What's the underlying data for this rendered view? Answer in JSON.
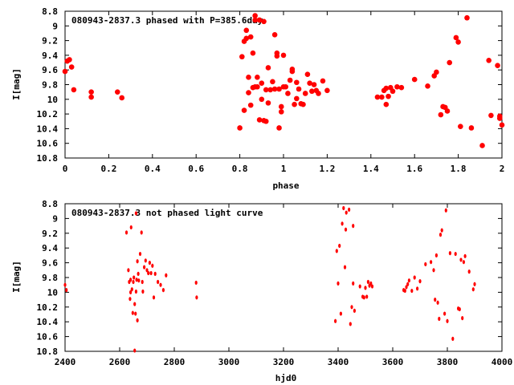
{
  "chart_data": [
    {
      "type": "scatter",
      "title": "080943-2837.3 phased with P=385.6day",
      "xlabel": "phase",
      "ylabel": "I[mag]",
      "xlim": [
        0,
        2
      ],
      "ylim": [
        10.8,
        8.8
      ],
      "y_inverted": true,
      "grid": false,
      "x_ticks": [
        "0",
        "0.2",
        "0.4",
        "0.6",
        "0.8",
        "1",
        "1.2",
        "1.4",
        "1.6",
        "1.8",
        "2"
      ],
      "y_ticks": [
        "8.8",
        "9",
        "9.2",
        "9.4",
        "9.6",
        "9.8",
        "10",
        "10.2",
        "10.4",
        "10.6",
        "10.8"
      ],
      "marker_color": "#ff0000",
      "series": [
        {
          "x": [
            0.0,
            0.01,
            0.02,
            0.03,
            0.04,
            0.12,
            0.12,
            0.24,
            0.26,
            0.8,
            0.81,
            0.82,
            0.83,
            0.84,
            0.84,
            0.85,
            0.86,
            0.86,
            0.87,
            0.87,
            0.88,
            0.88,
            0.89,
            0.89,
            0.9,
            0.9,
            0.91,
            0.91,
            0.92,
            0.92,
            0.93,
            0.93,
            0.94,
            0.95,
            0.96,
            0.97,
            0.98,
            0.99,
            1.0,
            1.0,
            1.01,
            1.02,
            1.03,
            1.04,
            1.05,
            1.06,
            1.07,
            1.08,
            1.09,
            1.1,
            1.11,
            1.12,
            1.13,
            1.14,
            1.15,
            1.16,
            1.18,
            1.2,
            0.83,
            0.82,
            0.85,
            0.87,
            0.96,
            0.97,
            0.98,
            0.99,
            1.04,
            1.06,
            1.43,
            1.45,
            1.46,
            1.47,
            1.48,
            1.49,
            1.5,
            1.52,
            1.54,
            1.6,
            1.66,
            1.69,
            1.7,
            1.72,
            1.73,
            1.74,
            1.75,
            1.76,
            1.79,
            1.8,
            1.81,
            1.84,
            1.86,
            1.91,
            1.94,
            1.95,
            1.98,
            1.99,
            1.99,
            2.0,
            1.47
          ],
          "y": [
            9.62,
            9.48,
            9.46,
            9.56,
            9.87,
            9.97,
            9.9,
            9.9,
            9.98,
            10.39,
            9.42,
            9.21,
            9.17,
            9.7,
            9.91,
            10.08,
            9.84,
            9.37,
            9.83,
            8.86,
            9.83,
            9.7,
            10.28,
            8.92,
            10.0,
            9.78,
            10.29,
            8.94,
            9.87,
            10.3,
            10.05,
            9.57,
            9.87,
            9.76,
            9.86,
            9.41,
            9.86,
            10.17,
            9.4,
            9.83,
            9.83,
            9.92,
            9.74,
            9.62,
            10.07,
            9.77,
            9.86,
            10.06,
            10.07,
            9.92,
            9.66,
            9.78,
            9.89,
            9.8,
            9.88,
            9.92,
            9.75,
            9.88,
            9.06,
            10.15,
            9.15,
            8.92,
            9.12,
            9.37,
            10.39,
            10.1,
            9.59,
            9.99,
            9.97,
            9.97,
            9.88,
            9.85,
            9.96,
            9.84,
            9.89,
            9.83,
            9.84,
            9.73,
            9.82,
            9.68,
            9.63,
            10.21,
            10.1,
            10.11,
            10.16,
            9.5,
            9.16,
            9.22,
            10.37,
            8.89,
            10.39,
            10.63,
            9.47,
            10.22,
            9.54,
            10.23,
            10.26,
            10.35,
            10.07
          ],
          "marker": "filled-circle"
        }
      ]
    },
    {
      "type": "scatter",
      "title": "080943-2837.3 not phased light curve",
      "xlabel": "hjd0",
      "ylabel": "I[mag]",
      "xlim": [
        2400,
        4000
      ],
      "ylim": [
        10.8,
        8.8
      ],
      "y_inverted": true,
      "grid": false,
      "x_ticks": [
        "2400",
        "2600",
        "2800",
        "3000",
        "3200",
        "3400",
        "3600",
        "3800",
        "4000"
      ],
      "y_ticks": [
        "8.8",
        "9",
        "9.2",
        "9.4",
        "9.6",
        "9.8",
        "10",
        "10.2",
        "10.4",
        "10.6",
        "10.8"
      ],
      "marker_color": "#ff0000",
      "series": [
        {
          "x": [
            2400,
            2405,
            2625,
            2632,
            2635,
            2638,
            2640,
            2640,
            2642,
            2645,
            2648,
            2650,
            2652,
            2655,
            2658,
            2660,
            2662,
            2665,
            2668,
            2670,
            2675,
            2680,
            2683,
            2685,
            2690,
            2695,
            2700,
            2705,
            2710,
            2715,
            2720,
            2725,
            2730,
            2740,
            2750,
            2760,
            2770,
            2880,
            2882,
            2655,
            2660,
            2665,
            3390,
            3395,
            3400,
            3405,
            3410,
            3415,
            3420,
            3425,
            3428,
            3430,
            3440,
            3445,
            3450,
            3455,
            3460,
            3480,
            3490,
            3495,
            3500,
            3505,
            3510,
            3515,
            3520,
            3525,
            3455,
            3640,
            3645,
            3650,
            3655,
            3660,
            3670,
            3680,
            3690,
            3700,
            3720,
            3740,
            3750,
            3755,
            3760,
            3765,
            3770,
            3775,
            3780,
            3790,
            3795,
            3800,
            3810,
            3820,
            3830,
            3840,
            3845,
            3850,
            3855,
            3860,
            3865,
            3880,
            3895,
            3900
          ],
          "y": [
            9.9,
            9.97,
            9.19,
            9.7,
            9.86,
            10.09,
            10.0,
            9.83,
            9.12,
            9.96,
            10.28,
            9.86,
            9.8,
            10.16,
            10.29,
            8.93,
            9.83,
            10.38,
            9.75,
            9.84,
            9.48,
            9.19,
            9.86,
            9.99,
            9.66,
            9.57,
            9.7,
            9.74,
            9.6,
            9.74,
            9.64,
            10.07,
            9.75,
            9.86,
            9.9,
            9.97,
            9.77,
            9.87,
            10.07,
            10.79,
            9.99,
            9.58,
            10.39,
            9.44,
            9.88,
            9.37,
            10.29,
            9.07,
            8.86,
            9.66,
            9.15,
            8.92,
            8.88,
            10.43,
            10.2,
            9.88,
            10.25,
            9.92,
            10.06,
            10.07,
            9.94,
            10.06,
            9.86,
            9.91,
            9.88,
            9.92,
            9.1,
            9.97,
            9.98,
            9.93,
            9.89,
            9.84,
            9.98,
            9.8,
            9.95,
            9.85,
            9.62,
            9.59,
            9.7,
            10.1,
            9.5,
            10.14,
            10.36,
            9.22,
            9.16,
            10.29,
            8.89,
            10.39,
            9.47,
            10.63,
            9.48,
            10.22,
            10.23,
            9.56,
            10.35,
            9.59,
            9.51,
            9.72,
            9.96,
            9.89
          ]
        }
      ]
    }
  ]
}
